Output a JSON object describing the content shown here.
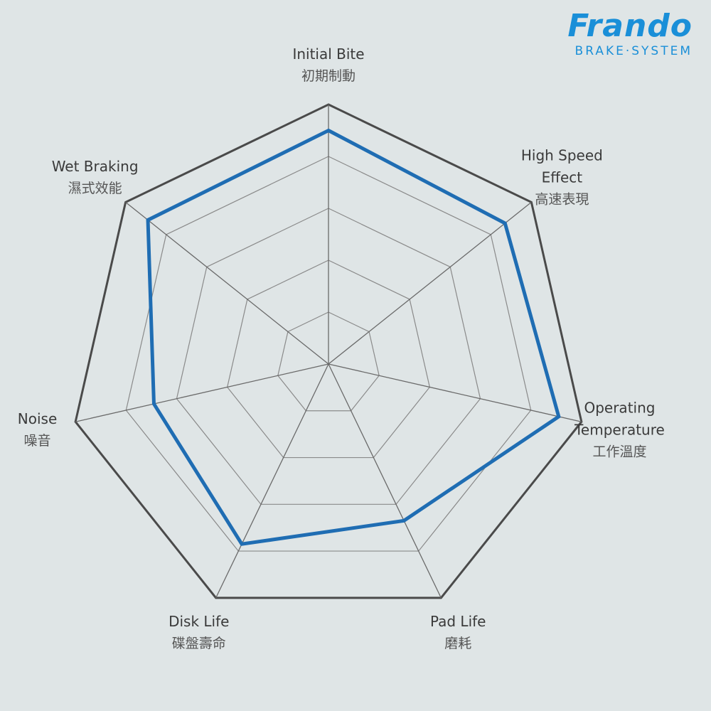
{
  "brand": {
    "name": "Frando",
    "tagline": "BRAKE·SYSTEM"
  },
  "chart_data": {
    "type": "radar",
    "categories": [
      "Initial Bite",
      "High Speed Effect",
      "Operating Temperature",
      "Pad Life",
      "Disk Life",
      "Noise",
      "Wet Braking"
    ],
    "categories_zh": [
      "初期制動",
      "高速表現",
      "工作溫度",
      "磨耗",
      "碟盤壽命",
      "噪音",
      "濕式效能"
    ],
    "values": [
      9,
      8.7,
      9.1,
      6.7,
      7.7,
      6.9,
      8.9
    ],
    "color": "#1f6db3",
    "rlim": [
      0,
      10
    ],
    "rticks": [
      2,
      4,
      6,
      8,
      10
    ]
  }
}
